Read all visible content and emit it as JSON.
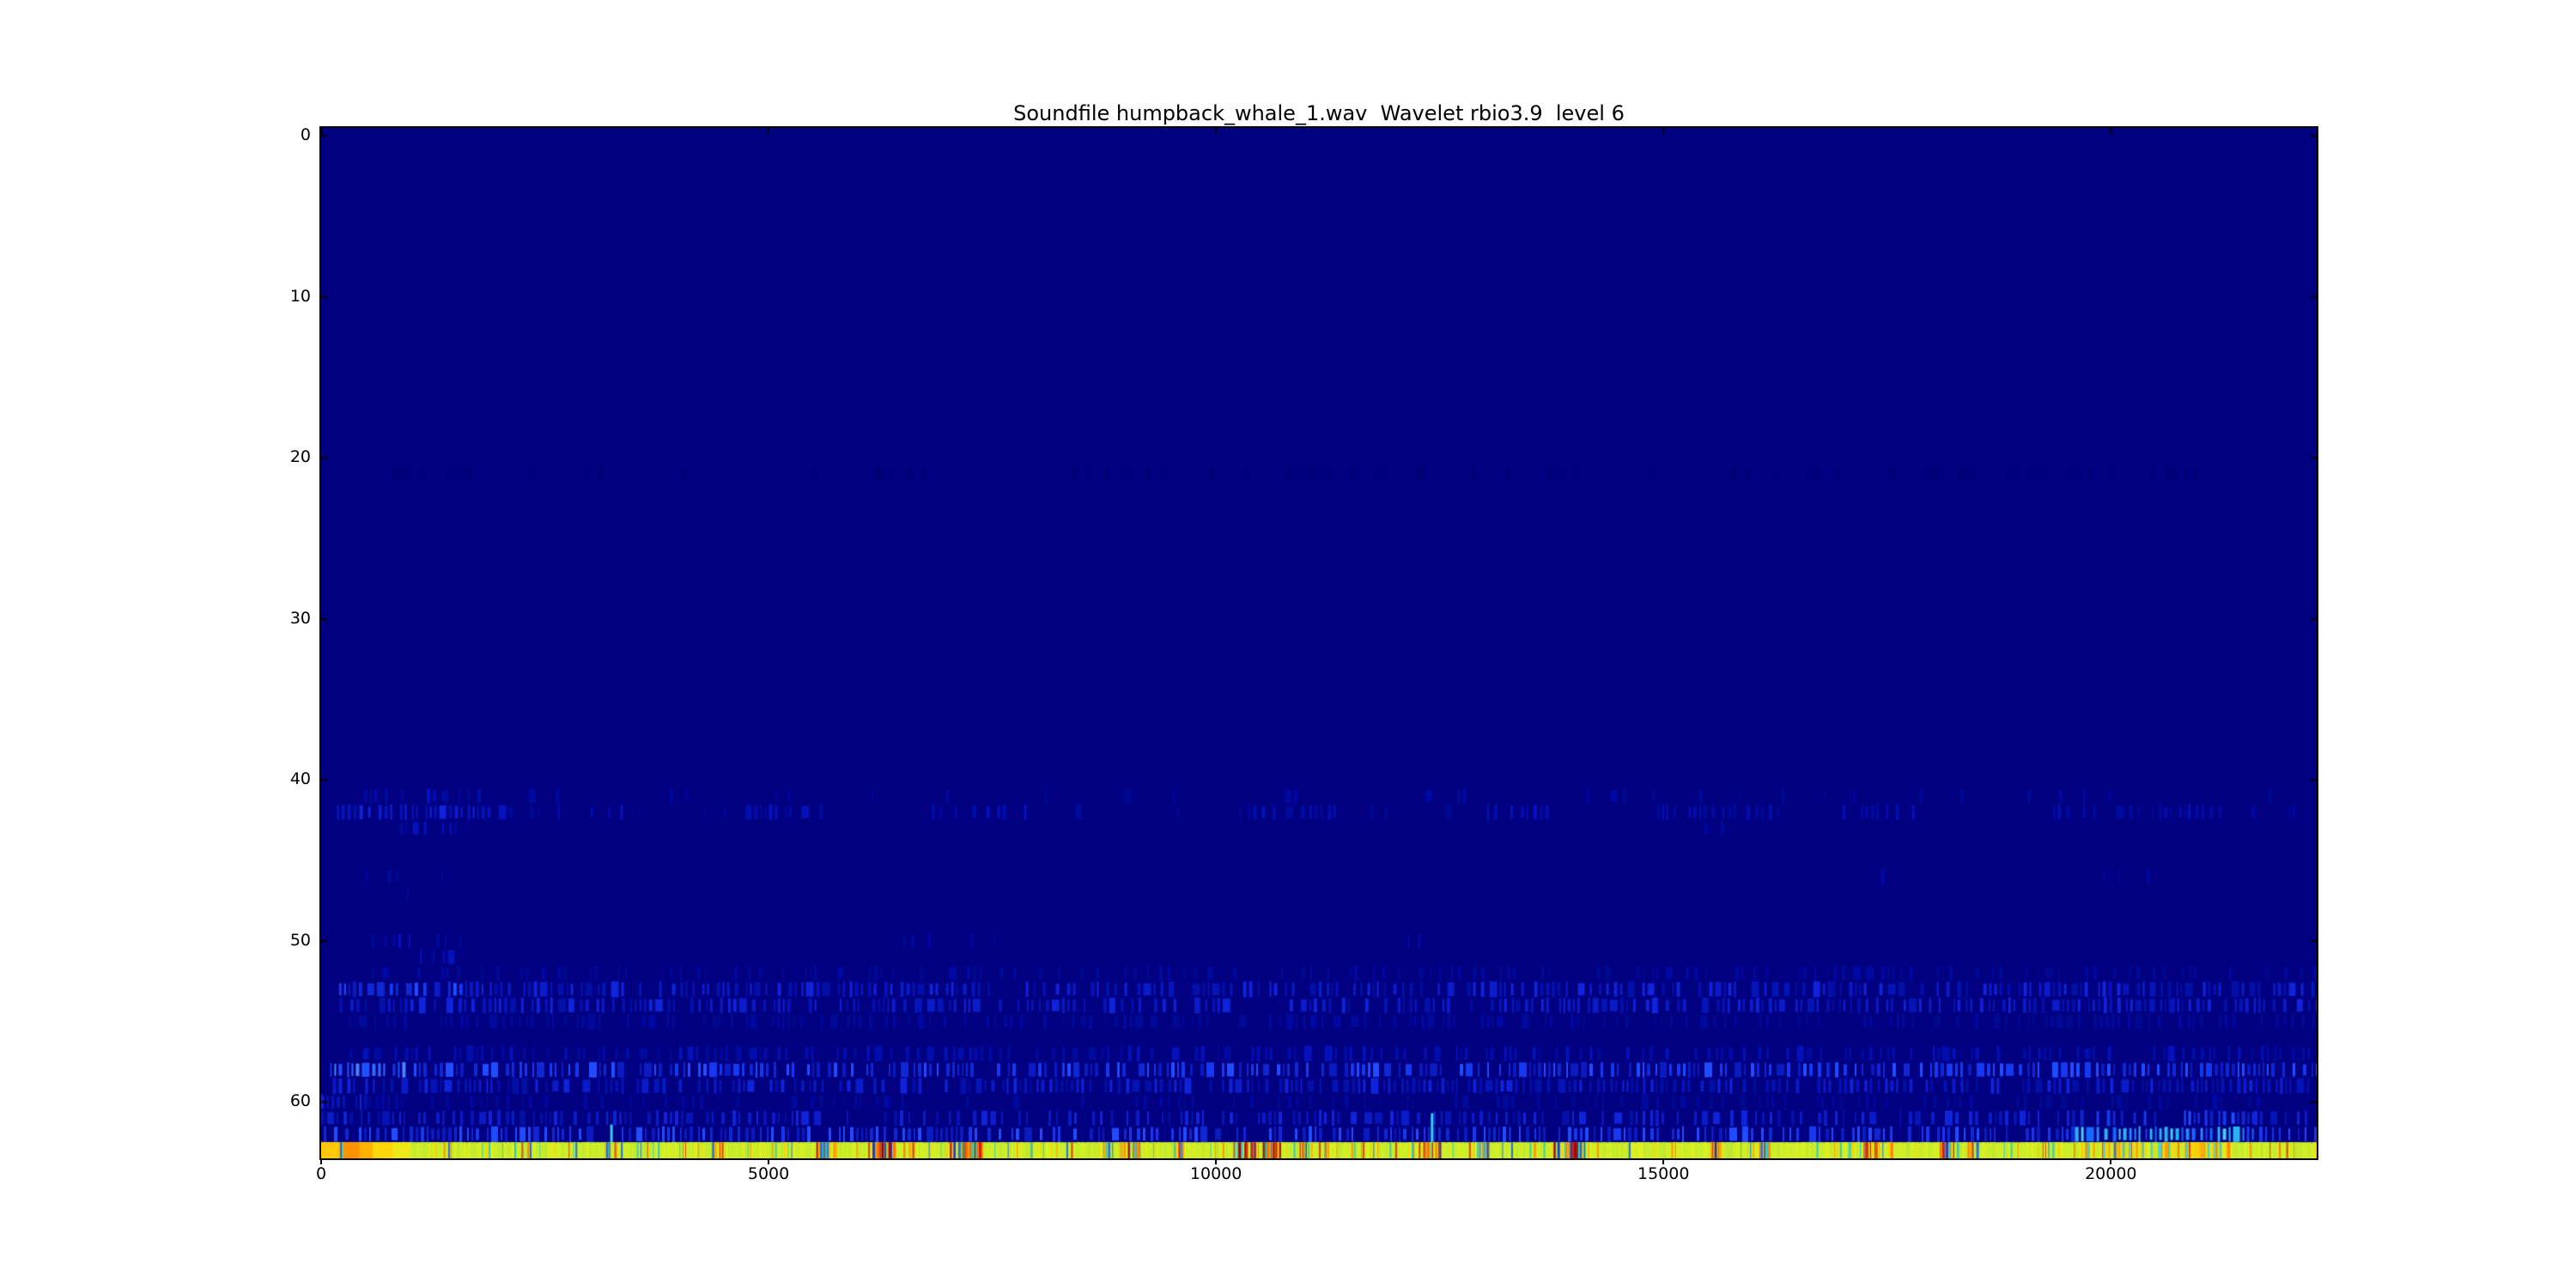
{
  "figure": {
    "background": "#ffffff",
    "frame_color": "#000000",
    "text_color": "#000000"
  },
  "chart_data": {
    "type": "heatmap",
    "title": "Soundfile humpback_whale_1.wav  Wavelet rbio3.9  level 6",
    "subtitle": "",
    "xlabel": "",
    "ylabel": "",
    "legend": "none",
    "grid": false,
    "colormap": "jet",
    "x_range": [
      0,
      22300
    ],
    "y_range": [
      0,
      64
    ],
    "n_rows": 64,
    "x_ticks": [
      0,
      5000,
      10000,
      15000,
      20000
    ],
    "x_tick_labels": [
      "0",
      "5000",
      "10000",
      "15000",
      "20000"
    ],
    "y_ticks": [
      0,
      10,
      20,
      30,
      40,
      50,
      60
    ],
    "y_tick_labels": [
      "0",
      "10",
      "20",
      "30",
      "40",
      "50",
      "60"
    ],
    "background_value_color": "#000080",
    "seed": 42,
    "palettes": {
      "ghost": [
        "#000075",
        "#00007a"
      ],
      "faint": [
        "#000890",
        "#000a9a",
        "#0008a4"
      ],
      "dim": [
        "#000a9e",
        "#000eae",
        "#0512bc"
      ],
      "med": [
        "#0514b6",
        "#0a1cc8",
        "#0f24d8",
        "#0310a8"
      ],
      "bright": [
        "#0f28d2",
        "#1638ee",
        "#204cff",
        "#0a1cc0"
      ],
      "vivid": [
        "#2050ff",
        "#3868ff",
        "#1334e8",
        "#4c82ff"
      ],
      "cyan": [
        "#28b4f4",
        "#48ccf8",
        "#1668ff",
        "#2a86ff",
        "#1f3cf0"
      ],
      "mix": [
        "#ff8c00",
        "#e83000",
        "#28c8c8",
        "#ffb000",
        "#c00000",
        "#2070e0"
      ],
      "hot": [
        "#d42000",
        "#a00000",
        "#ff7000",
        "#ff9c00",
        "#2040c0",
        "#28c8c8"
      ]
    },
    "bands": [
      {
        "row": 21,
        "segments": [
          [
            300,
            21500,
            0.12,
            "ghost"
          ]
        ]
      },
      {
        "row": 41,
        "segments": [
          [
            250,
            1800,
            0.4,
            "dim"
          ],
          [
            1800,
            22000,
            0.05,
            "faint"
          ]
        ]
      },
      {
        "row": 42,
        "segments": [
          [
            150,
            1800,
            0.6,
            "med"
          ],
          [
            1800,
            3400,
            0.22,
            "dim"
          ],
          [
            4600,
            5600,
            0.3,
            "dim"
          ],
          [
            6800,
            8000,
            0.3,
            "dim"
          ],
          [
            10300,
            11500,
            0.26,
            "dim"
          ],
          [
            12800,
            13800,
            0.26,
            "dim"
          ],
          [
            14900,
            16300,
            0.38,
            "dim"
          ],
          [
            17000,
            17900,
            0.32,
            "dim"
          ],
          [
            19300,
            21200,
            0.38,
            "dim"
          ],
          [
            3400,
            4600,
            0.06,
            "faint"
          ],
          [
            8000,
            10300,
            0.06,
            "faint"
          ],
          [
            11500,
            12800,
            0.06,
            "faint"
          ],
          [
            16300,
            17000,
            0.06,
            "faint"
          ],
          [
            21200,
            22300,
            0.1,
            "faint"
          ]
        ]
      },
      {
        "row": 43,
        "segments": [
          [
            850,
            1500,
            0.32,
            "dim"
          ],
          [
            15400,
            15800,
            0.18,
            "faint"
          ]
        ]
      },
      {
        "row": 46,
        "segments": [
          [
            350,
            1400,
            0.22,
            "faint"
          ],
          [
            17200,
            17700,
            0.12,
            "faint"
          ],
          [
            19800,
            20400,
            0.12,
            "faint"
          ]
        ]
      },
      {
        "row": 47,
        "segments": [
          [
            700,
            1050,
            0.15,
            "faint"
          ]
        ]
      },
      {
        "row": 50,
        "segments": [
          [
            450,
            1700,
            0.32,
            "dim"
          ],
          [
            6500,
            7600,
            0.12,
            "faint"
          ],
          [
            12000,
            13100,
            0.12,
            "faint"
          ]
        ]
      },
      {
        "row": 51,
        "segments": [
          [
            1050,
            1550,
            0.28,
            "dim"
          ]
        ]
      },
      {
        "row": 52,
        "segments": [
          [
            250,
            22300,
            0.2,
            "faint"
          ]
        ]
      },
      {
        "row": 53,
        "segments": [
          [
            200,
            1800,
            0.75,
            "bright"
          ],
          [
            1800,
            22300,
            0.48,
            "med"
          ]
        ]
      },
      {
        "row": 54,
        "segments": [
          [
            200,
            22300,
            0.45,
            "med"
          ]
        ]
      },
      {
        "row": 55,
        "segments": [
          [
            250,
            22300,
            0.26,
            "faint"
          ]
        ]
      },
      {
        "row": 57,
        "segments": [
          [
            150,
            22300,
            0.3,
            "dim"
          ]
        ]
      },
      {
        "row": 58,
        "segments": [
          [
            100,
            950,
            0.85,
            "vivid"
          ],
          [
            950,
            22300,
            0.58,
            "bright"
          ]
        ]
      },
      {
        "row": 59,
        "segments": [
          [
            100,
            22300,
            0.48,
            "med"
          ]
        ]
      },
      {
        "row": 60,
        "segments": [
          [
            0,
            500,
            0.45,
            "med"
          ],
          [
            500,
            22300,
            0.2,
            "faint"
          ]
        ]
      },
      {
        "row": 61,
        "segments": [
          [
            0,
            19600,
            0.4,
            "med"
          ],
          [
            19600,
            21600,
            0.55,
            "bright"
          ],
          [
            21600,
            22300,
            0.35,
            "med"
          ]
        ]
      },
      {
        "row": 62,
        "segments": [
          [
            0,
            19600,
            0.52,
            "bright"
          ],
          [
            19600,
            21600,
            0.85,
            "cyan"
          ],
          [
            21600,
            22300,
            0.45,
            "bright"
          ]
        ]
      }
    ],
    "spikes": [
      {
        "x": 3230,
        "row_top": 61.9,
        "row_bottom": 63.3,
        "color": "#38cce8",
        "width": 3
      },
      {
        "x": 12400,
        "row_top": 61.2,
        "row_bottom": 63.3,
        "color": "#38cce8",
        "width": 3
      }
    ],
    "bottom_row": {
      "row": 63,
      "base_color": "#cdee28",
      "texture_colors": [
        "#c2e929",
        "#d6f024",
        "#bfe731",
        "#dff01e",
        "#c9ec2f",
        "#d0ee1f"
      ],
      "left_segments": [
        [
          0,
          200,
          "#ffc808"
        ],
        [
          200,
          215,
          "#ffaa00"
        ],
        [
          215,
          232,
          "#1f46dd"
        ],
        [
          232,
          248,
          "#3cd2e2"
        ],
        [
          248,
          430,
          "#ff9200"
        ],
        [
          430,
          580,
          "#ffb300"
        ],
        [
          580,
          800,
          "#ffd60a"
        ],
        [
          800,
          1000,
          "#eee816"
        ]
      ],
      "clusters": [
        [
          2250,
          100,
          6,
          "mix"
        ],
        [
          3230,
          80,
          10,
          "mix"
        ],
        [
          4420,
          60,
          8,
          "mix"
        ],
        [
          5650,
          120,
          18,
          "mix"
        ],
        [
          6280,
          140,
          26,
          "hot"
        ],
        [
          7200,
          180,
          30,
          "hot"
        ],
        [
          8950,
          230,
          26,
          "mix"
        ],
        [
          9550,
          60,
          8,
          "mix"
        ],
        [
          10450,
          260,
          30,
          "hot"
        ],
        [
          11000,
          80,
          8,
          "mix"
        ],
        [
          12400,
          120,
          14,
          "mix"
        ],
        [
          12950,
          100,
          12,
          "mix"
        ],
        [
          13950,
          190,
          34,
          "hot"
        ],
        [
          15580,
          60,
          10,
          "hot"
        ],
        [
          16100,
          100,
          10,
          "mix"
        ],
        [
          17300,
          120,
          10,
          "mix"
        ],
        [
          18150,
          90,
          14,
          "hot"
        ],
        [
          18450,
          60,
          8,
          "mix"
        ]
      ],
      "gold_region": {
        "x0": 19650,
        "x1": 21350,
        "line_density": 0.45,
        "gold_colors": [
          "#ffd400",
          "#f5d80e",
          "#ffc300"
        ],
        "orange_count": 22,
        "cyan_count": 12
      },
      "sprinkle_count": 170,
      "sprinkle_colors": [
        "#2fc8c8",
        "#ff9500",
        "#e04000",
        "#ffd000",
        "#3fd0a0",
        "#2070e0",
        "#ff7a00"
      ]
    }
  }
}
